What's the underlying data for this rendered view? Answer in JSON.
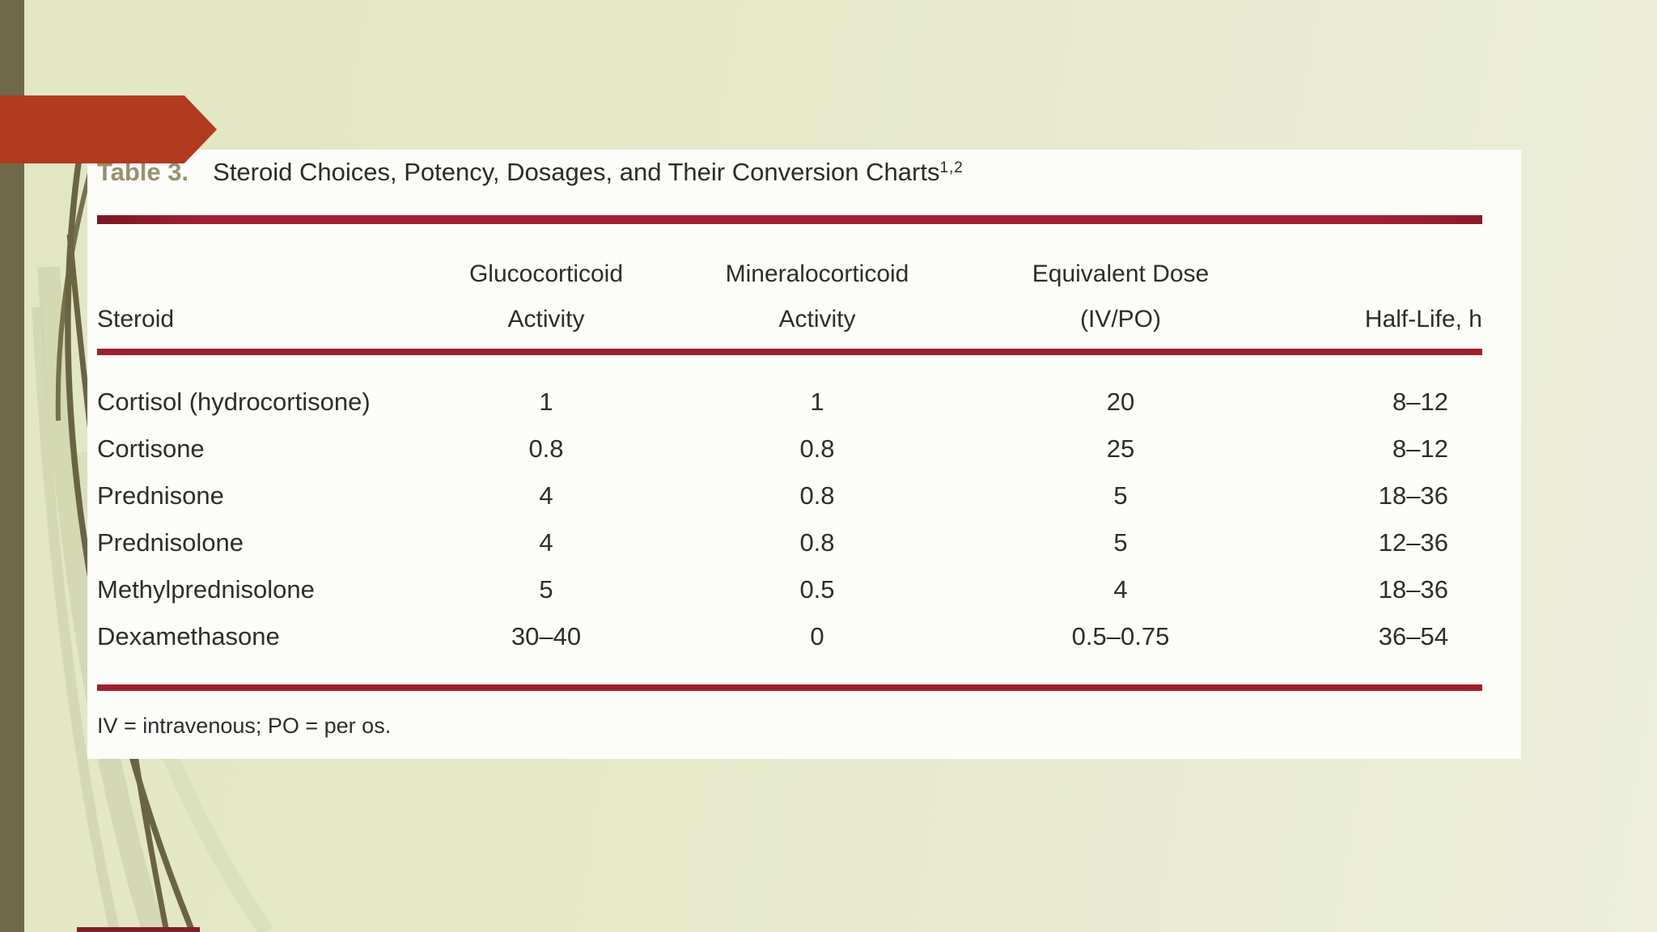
{
  "slide": {
    "background_left_color": "#e2e6c3",
    "background_right_color": "#edefdb",
    "left_bar_color": "#6f684c",
    "arrow_color": "#b23a1e",
    "vine_dark_color": "#6b6444",
    "vine_light_color": "#cfd4b0",
    "bottom_mark_color": "#7e2026"
  },
  "panel": {
    "background_color": "#fcfcf9",
    "rule_color": "#9e1f2e",
    "title_label": "Table 3.",
    "title_label_color": "#99906f",
    "title": "Steroid Choices, Potency, Dosages, and Their Conversion Charts",
    "title_superscript": "1,2",
    "footnote": "IV = intravenous; PO = per os."
  },
  "chart_data": {
    "type": "table",
    "title": "Table 3. Steroid Choices, Potency, Dosages, and Their Conversion Charts",
    "title_reference_superscript": "1,2",
    "columns": [
      "Steroid",
      "Glucocorticoid Activity",
      "Mineralocorticoid Activity",
      "Equivalent Dose (IV/PO)",
      "Half-Life, h"
    ],
    "column_header_lines": [
      [
        "Steroid"
      ],
      [
        "Glucocorticoid",
        "Activity"
      ],
      [
        "Mineralocorticoid",
        "Activity"
      ],
      [
        "Equivalent Dose",
        "(IV/PO)"
      ],
      [
        "Half-Life, h"
      ]
    ],
    "rows": [
      [
        "Cortisol (hydrocortisone)",
        "1",
        "1",
        "20",
        "8–12"
      ],
      [
        "Cortisone",
        "0.8",
        "0.8",
        "25",
        "8–12"
      ],
      [
        "Prednisone",
        "4",
        "0.8",
        "5",
        "18–36"
      ],
      [
        "Prednisolone",
        "4",
        "0.8",
        "5",
        "12–36"
      ],
      [
        "Methylprednisolone",
        "5",
        "0.5",
        "4",
        "18–36"
      ],
      [
        "Dexamethasone",
        "30–40",
        "0",
        "0.5–0.75",
        "36–54"
      ]
    ],
    "footnote": "IV = intravenous; PO = per os."
  }
}
